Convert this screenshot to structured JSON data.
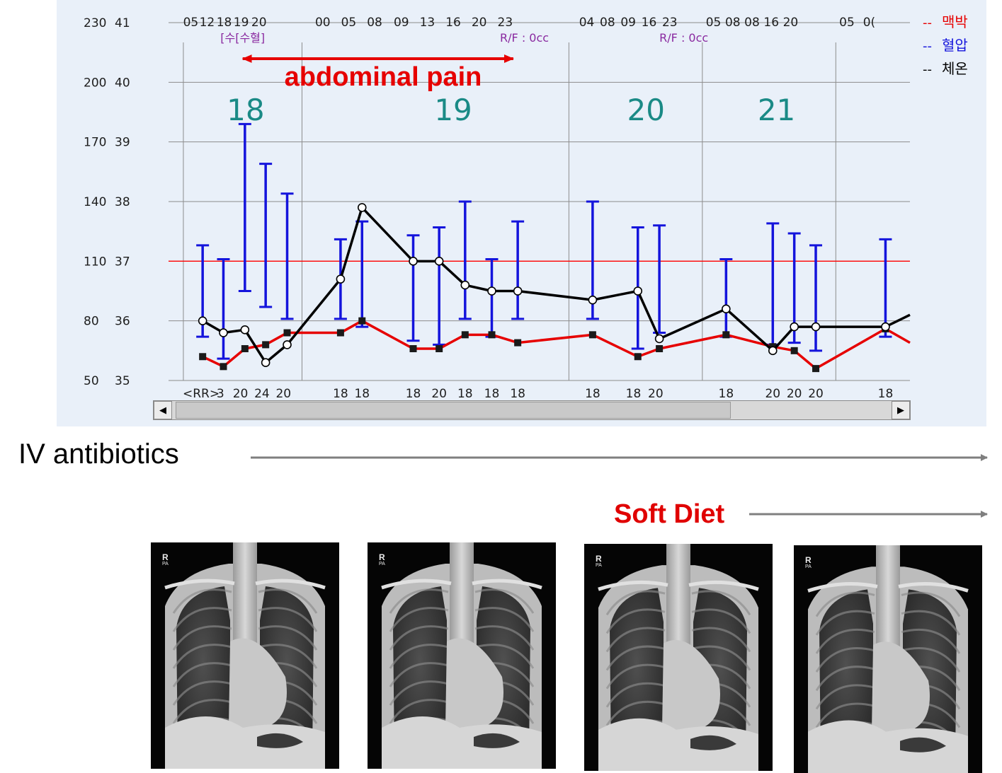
{
  "chart_data": {
    "type": "line",
    "left_axis": {
      "ticks": [
        {
          "pr": "230",
          "temp": "41"
        },
        {
          "pr": "200",
          "temp": "40"
        },
        {
          "pr": "170",
          "temp": "39"
        },
        {
          "pr": "140",
          "temp": "38"
        },
        {
          "pr": "110",
          "temp": "37"
        },
        {
          "pr": "80",
          "temp": "36"
        },
        {
          "pr": "50",
          "temp": "35"
        }
      ],
      "pr_range": [
        50,
        230
      ],
      "temp_range": [
        35,
        41
      ],
      "reference_line": 110
    },
    "x_axis": {
      "range": [
        0,
        100
      ],
      "day_boundaries": [
        2,
        18,
        54,
        72,
        90
      ],
      "time_labels": [
        {
          "t": 3.0,
          "label": "05"
        },
        {
          "t": 5.2,
          "label": "12"
        },
        {
          "t": 7.5,
          "label": "18"
        },
        {
          "t": 9.8,
          "label": "19"
        },
        {
          "t": 12.2,
          "label": "20"
        },
        {
          "t": 20.8,
          "label": "00"
        },
        {
          "t": 24.3,
          "label": "05"
        },
        {
          "t": 27.8,
          "label": "08"
        },
        {
          "t": 31.4,
          "label": "09"
        },
        {
          "t": 34.9,
          "label": "13"
        },
        {
          "t": 38.4,
          "label": "16"
        },
        {
          "t": 41.9,
          "label": "20"
        },
        {
          "t": 45.4,
          "label": "23"
        },
        {
          "t": 56.4,
          "label": "04"
        },
        {
          "t": 59.2,
          "label": "08"
        },
        {
          "t": 62.0,
          "label": "09"
        },
        {
          "t": 64.8,
          "label": "16"
        },
        {
          "t": 67.6,
          "label": "23"
        },
        {
          "t": 73.5,
          "label": "05"
        },
        {
          "t": 76.1,
          "label": "08"
        },
        {
          "t": 78.7,
          "label": "08"
        },
        {
          "t": 81.3,
          "label": "16"
        },
        {
          "t": 83.9,
          "label": "20"
        },
        {
          "t": 91.5,
          "label": "05"
        },
        {
          "t": 94.5,
          "label": "0("
        }
      ],
      "day_labels": [
        {
          "t": 10.4,
          "label": "18"
        },
        {
          "t": 38.4,
          "label": "19"
        },
        {
          "t": 64.4,
          "label": "20"
        },
        {
          "t": 82.0,
          "label": "21"
        }
      ],
      "rr_prefix": "<RR>",
      "rr_values": [
        {
          "t": 7.0,
          "label": "3"
        },
        {
          "t": 9.7,
          "label": "20"
        },
        {
          "t": 12.6,
          "label": "24"
        },
        {
          "t": 15.5,
          "label": "20"
        },
        {
          "t": 23.2,
          "label": "18"
        },
        {
          "t": 26.1,
          "label": "18"
        },
        {
          "t": 33.0,
          "label": "18"
        },
        {
          "t": 36.5,
          "label": "20"
        },
        {
          "t": 40.0,
          "label": "18"
        },
        {
          "t": 43.6,
          "label": "18"
        },
        {
          "t": 47.1,
          "label": "18"
        },
        {
          "t": 57.2,
          "label": "18"
        },
        {
          "t": 62.7,
          "label": "18"
        },
        {
          "t": 65.7,
          "label": "20"
        },
        {
          "t": 75.2,
          "label": "18"
        },
        {
          "t": 81.5,
          "label": "20"
        },
        {
          "t": 84.4,
          "label": "20"
        },
        {
          "t": 87.3,
          "label": "20"
        },
        {
          "t": 96.7,
          "label": "18"
        }
      ],
      "notes": [
        {
          "t": 10.0,
          "label": "[수[수혈]"
        },
        {
          "t": 48.0,
          "label": "R/F : 0cc"
        },
        {
          "t": 69.5,
          "label": "R/F : 0cc"
        }
      ]
    },
    "series": [
      {
        "name": "혈압",
        "color": "#1414dc",
        "kind": "range",
        "x": [
          4.6,
          7.4,
          10.3,
          13.1,
          16.0,
          23.2,
          26.1,
          33.0,
          36.5,
          40.0,
          43.6,
          47.1,
          57.2,
          63.3,
          66.2,
          75.2,
          81.5,
          84.4,
          87.3,
          96.7
        ],
        "low": [
          72,
          61,
          95,
          87,
          81,
          81,
          77,
          70,
          68,
          81,
          72,
          81,
          81,
          66,
          74,
          72,
          68,
          69,
          65,
          72
        ],
        "high": [
          118,
          111,
          179,
          159,
          144,
          121,
          130,
          123,
          127,
          140,
          111,
          130,
          140,
          127,
          128,
          111,
          129,
          124,
          118,
          121
        ]
      },
      {
        "name": "체온",
        "color": "#000000",
        "x": [
          4.6,
          7.4,
          10.3,
          13.1,
          16.0,
          23.2,
          26.1,
          33.0,
          36.5,
          40.0,
          43.6,
          47.1,
          57.2,
          63.3,
          66.2,
          75.2,
          81.5,
          84.4,
          87.3,
          96.7,
          100.0
        ],
        "y": [
          36.0,
          35.8,
          35.85,
          35.3,
          35.6,
          36.7,
          37.9,
          37.0,
          37.0,
          36.6,
          36.5,
          36.5,
          36.35,
          36.5,
          35.7,
          36.2,
          35.5,
          35.9,
          35.9,
          35.9,
          36.1
        ]
      },
      {
        "name": "맥박",
        "color": "#e60000",
        "x": [
          4.6,
          7.4,
          10.3,
          13.1,
          16.0,
          23.2,
          26.1,
          33.0,
          36.5,
          40.0,
          43.6,
          47.1,
          57.2,
          63.3,
          66.2,
          75.2,
          81.5,
          84.4,
          87.3,
          96.7,
          100.0
        ],
        "y": [
          62,
          57,
          66,
          68,
          74,
          74,
          80,
          66,
          66,
          73,
          73,
          69,
          73,
          62,
          66,
          73,
          67,
          65,
          56,
          76,
          69
        ]
      }
    ],
    "legend": {
      "placement": "top-right",
      "items": [
        {
          "label": "맥박",
          "color": "#e60000"
        },
        {
          "label": "혈압",
          "color": "#1414dc"
        },
        {
          "label": "체온",
          "color": "#000000"
        }
      ]
    }
  },
  "annotations": {
    "abdominal_pain": {
      "label": "abdominal pain",
      "color": "#e60000",
      "t_start": 10.0,
      "t_end": 46.5
    },
    "iv_antibiotics": {
      "label": "IV antibiotics"
    },
    "soft_diet": {
      "label": "Soft Diet"
    }
  },
  "scrollbar": {
    "left_arrow": "◀",
    "right_arrow": "▶"
  },
  "xrays": [
    {
      "marker": "R",
      "view": "PA"
    },
    {
      "marker": "R",
      "view": "PA"
    },
    {
      "marker": "R",
      "view": "PA"
    },
    {
      "marker": "R",
      "view": "PA"
    }
  ]
}
